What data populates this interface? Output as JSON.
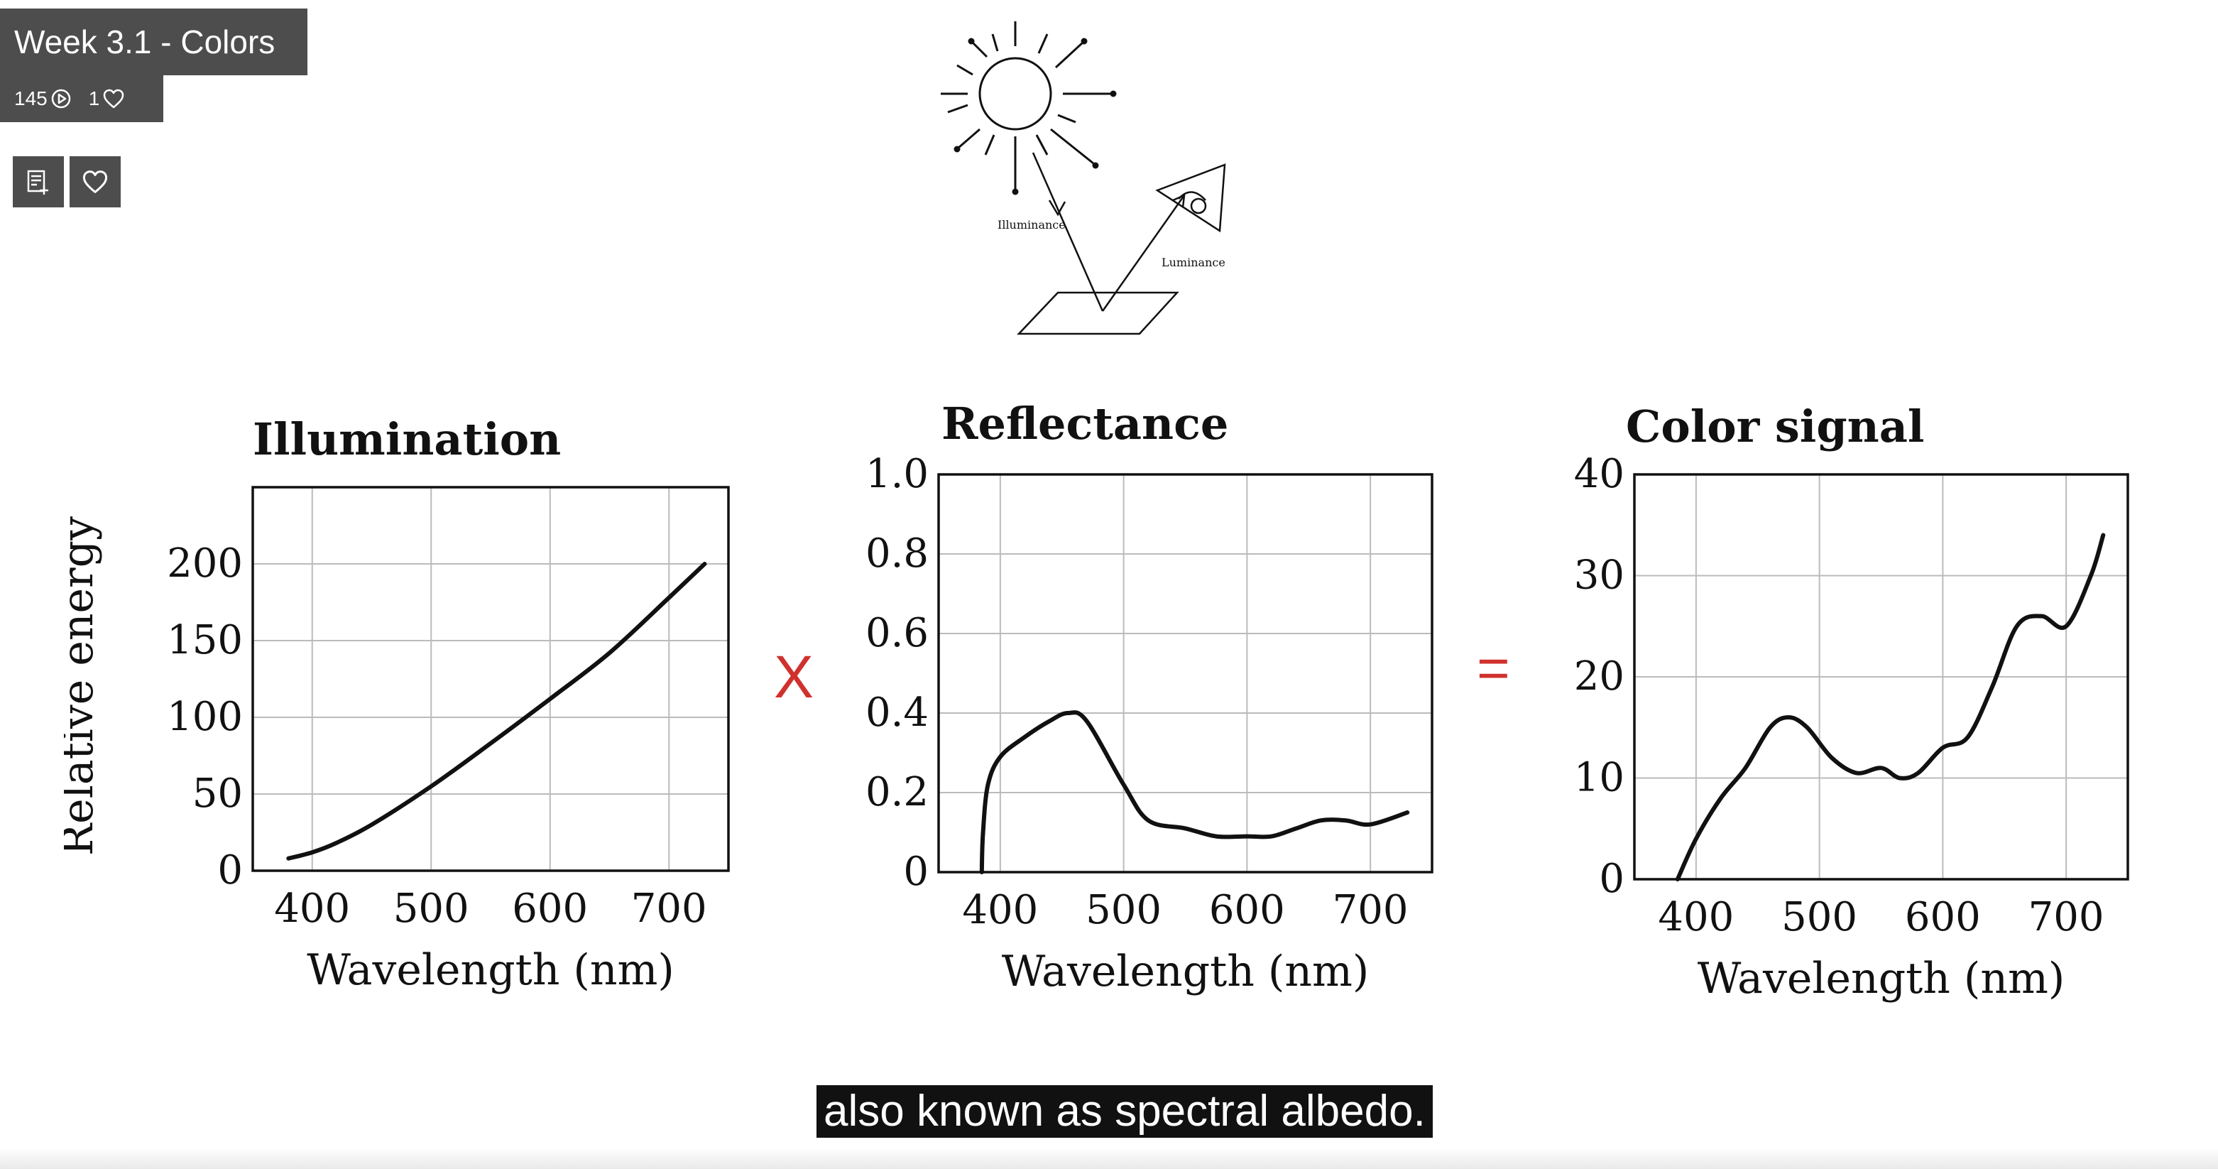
{
  "video": {
    "title": "Week 3.1 - Colors",
    "plays": "145",
    "likes": "1",
    "play_icon": "play-circle-icon",
    "like_icon": "heart-icon",
    "add_to_playlist_icon": "playlist-add-icon",
    "favorite_icon": "heart-icon"
  },
  "diagram": {
    "illuminance_label": "Illuminance",
    "luminance_label": "Luminance"
  },
  "operators": {
    "multiply": "X",
    "equals": "=",
    "color": "#d0312d"
  },
  "caption": "also known as spectral albedo.",
  "chart_data": [
    {
      "type": "line",
      "title": "Illumination",
      "xlabel": "Wavelength (nm)",
      "ylabel": "Relative energy",
      "xlim": [
        350,
        750
      ],
      "ylim": [
        0,
        250
      ],
      "xticks": [
        "400",
        "500",
        "600",
        "700"
      ],
      "yticks": [
        "0",
        "50",
        "100",
        "150",
        "200"
      ],
      "grid": true,
      "x": [
        380,
        400,
        420,
        450,
        500,
        550,
        600,
        650,
        700,
        730
      ],
      "y": [
        8,
        12,
        18,
        30,
        55,
        83,
        112,
        142,
        178,
        200
      ]
    },
    {
      "type": "line",
      "title": "Reflectance",
      "xlabel": "Wavelength (nm)",
      "ylabel": "",
      "xlim": [
        350,
        750
      ],
      "ylim": [
        0,
        1.0
      ],
      "xticks": [
        "400",
        "500",
        "600",
        "700"
      ],
      "yticks": [
        "0",
        "0.2",
        "0.4",
        "0.6",
        "0.8",
        "1.0"
      ],
      "grid": true,
      "x": [
        385,
        386,
        390,
        400,
        420,
        440,
        455,
        470,
        500,
        520,
        550,
        575,
        600,
        620,
        640,
        660,
        680,
        700,
        730
      ],
      "y": [
        0,
        0.1,
        0.22,
        0.29,
        0.34,
        0.38,
        0.4,
        0.38,
        0.22,
        0.13,
        0.11,
        0.09,
        0.09,
        0.09,
        0.11,
        0.13,
        0.13,
        0.12,
        0.15
      ]
    },
    {
      "type": "line",
      "title": "Color signal",
      "xlabel": "Wavelength (nm)",
      "ylabel": "",
      "xlim": [
        350,
        750
      ],
      "ylim": [
        0,
        40
      ],
      "xticks": [
        "400",
        "500",
        "600",
        "700"
      ],
      "yticks": [
        "0",
        "10",
        "20",
        "30",
        "40"
      ],
      "grid": true,
      "x": [
        385,
        400,
        420,
        440,
        460,
        475,
        490,
        510,
        530,
        550,
        565,
        580,
        600,
        620,
        640,
        660,
        680,
        700,
        720,
        730
      ],
      "y": [
        0,
        4,
        8,
        11,
        15,
        16,
        15,
        12,
        10.5,
        11,
        10,
        10.5,
        13,
        14,
        19,
        25,
        26,
        25,
        30,
        34
      ]
    }
  ]
}
